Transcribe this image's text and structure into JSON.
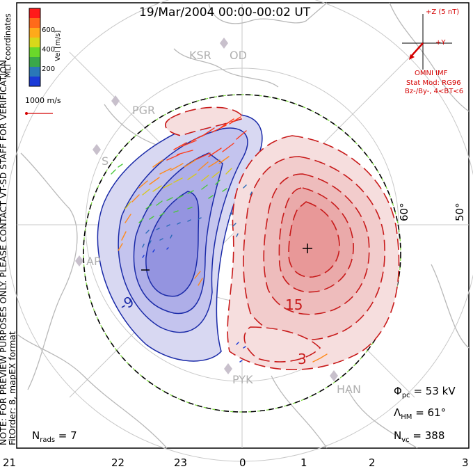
{
  "title": "19/Mar/2004 00:00-00:02 UT",
  "side_note": {
    "line1": "NOTE: FOR PREVIEW PURPOSES ONLY. PLEASE CONTACT VT-SD STAFF FOR VERIFICATION.",
    "line2": "FitOrder: 8, mapEX format"
  },
  "coords_label": "MLT coordinates",
  "colorbar": {
    "label": "Vel [m/s]",
    "ticks": [
      "600",
      "400",
      "200"
    ],
    "colors": [
      "#ff1a1a",
      "#ff6a1a",
      "#ffaa1a",
      "#d8d81a",
      "#6ad82a",
      "#3aa84a",
      "#2a78b8",
      "#1a3ad8"
    ]
  },
  "velocity_scale": "1000 m/s",
  "stations": [
    "KSR",
    "OD",
    "PGR",
    "AP",
    "PYK",
    "HAN",
    "S"
  ],
  "latitude_labels": [
    "60°",
    "50°"
  ],
  "imf": {
    "z_label": "+Z (5 nT)",
    "y_label": "+Y",
    "source": "OMNI IMF",
    "stat_mod": "Stat Mod: RG96",
    "condition": "Bz-/By-, 4<BT<6"
  },
  "contour_labels": {
    "neg": "-9",
    "pos1": "15",
    "pos2": "3",
    "min_marker": "–",
    "max_marker": "+"
  },
  "stats": {
    "phi_pc": "53 kV",
    "lambda_hm": "61°",
    "n_vc": "388",
    "n_rads": "7"
  },
  "mlt_ticks": [
    "21",
    "22",
    "23",
    "0",
    "1",
    "2",
    "3"
  ],
  "colors": {
    "coastline": "#b8b8b8",
    "neg_contour": "#1a2aa8",
    "pos_contour": "#c81a1a",
    "neg_fill": "#c8c8ee",
    "pos_fill": "#f4d2d2",
    "imf_red": "#d40000"
  }
}
